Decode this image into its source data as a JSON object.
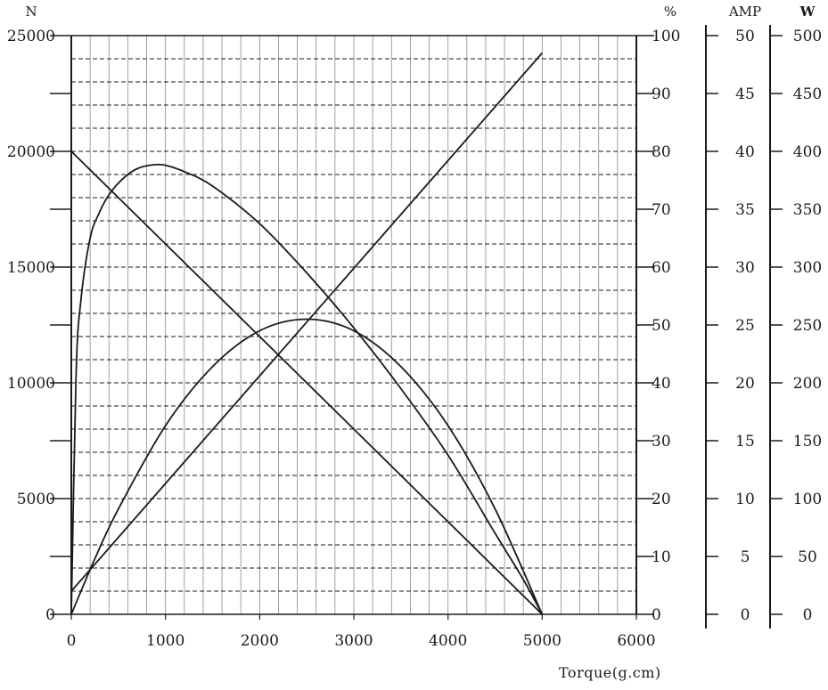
{
  "chart_data": {
    "type": "line",
    "xlabel": "Torque(g.cm)",
    "xlim": [
      0,
      6000
    ],
    "x_ticks": [
      "0",
      "1000",
      "2000",
      "3000",
      "4000",
      "5000",
      "6000"
    ],
    "axes": {
      "speed": {
        "unit": "N",
        "range": [
          0,
          25000
        ],
        "ticks": [
          "0",
          "5000",
          "10000",
          "15000",
          "20000",
          "25000"
        ]
      },
      "efficiency": {
        "unit": "%",
        "range": [
          0,
          100
        ],
        "ticks": [
          "0",
          "10",
          "20",
          "30",
          "40",
          "50",
          "60",
          "70",
          "80",
          "90",
          "100"
        ]
      },
      "current": {
        "unit": "AMP",
        "range": [
          0,
          50
        ],
        "ticks": [
          "0",
          "5",
          "10",
          "15",
          "20",
          "25",
          "30",
          "35",
          "40",
          "45",
          "50"
        ]
      },
      "power": {
        "unit": "W",
        "range": [
          0,
          500
        ],
        "ticks": [
          "0",
          "50",
          "100",
          "150",
          "200",
          "250",
          "300",
          "350",
          "400",
          "450",
          "500"
        ]
      }
    },
    "grid": true,
    "series": [
      {
        "axis": "speed",
        "x": [
          0,
          5000
        ],
        "y": [
          20000,
          0
        ]
      },
      {
        "axis": "current",
        "x": [
          0,
          5000
        ],
        "y": [
          2,
          48.5
        ]
      },
      {
        "axis": "efficiency",
        "x": [
          0,
          50,
          100,
          200,
          300,
          400,
          500,
          600,
          700,
          800,
          900,
          1000,
          1200,
          1500,
          2000,
          2500,
          3000,
          3500,
          4000,
          4500,
          4800,
          5000
        ],
        "y": [
          0,
          41,
          54,
          65,
          69.5,
          72.5,
          74.5,
          76,
          77,
          77.5,
          77.7,
          77.6,
          76.5,
          74,
          67.5,
          59,
          49.5,
          39,
          27.5,
          14,
          6,
          0
        ]
      },
      {
        "axis": "power",
        "x": [
          0,
          250,
          500,
          1000,
          1500,
          2000,
          2500,
          3000,
          3500,
          4000,
          4500,
          5000
        ],
        "y": [
          0,
          48,
          91,
          163,
          214,
          245,
          255,
          245,
          214,
          163,
          91,
          0
        ]
      }
    ]
  }
}
